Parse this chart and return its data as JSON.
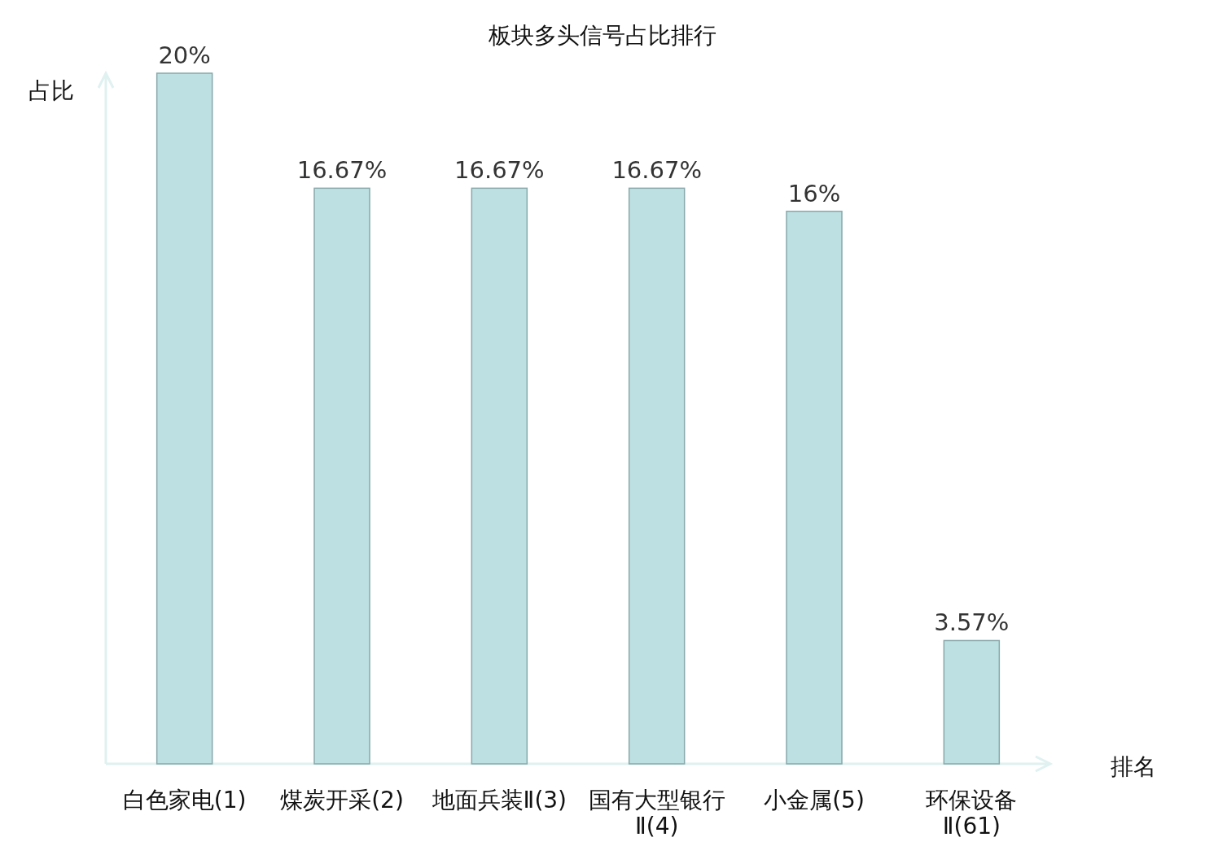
{
  "chart_data": {
    "type": "bar",
    "title": "板块多头信号占比排行",
    "xlabel": "排名",
    "ylabel": "占比",
    "categories": [
      "白色家电(1)",
      "煤炭开采(2)",
      "地面兵装Ⅱ(3)",
      "国有大型银行Ⅱ(4)",
      "小金属(5)",
      "环保设备Ⅱ(61)"
    ],
    "values": [
      20,
      16.67,
      16.67,
      16.67,
      16,
      3.57
    ],
    "value_labels": [
      "20%",
      "16.67%",
      "16.67%",
      "16.67%",
      "16%",
      "3.57%"
    ],
    "color": "#bde0e3"
  }
}
